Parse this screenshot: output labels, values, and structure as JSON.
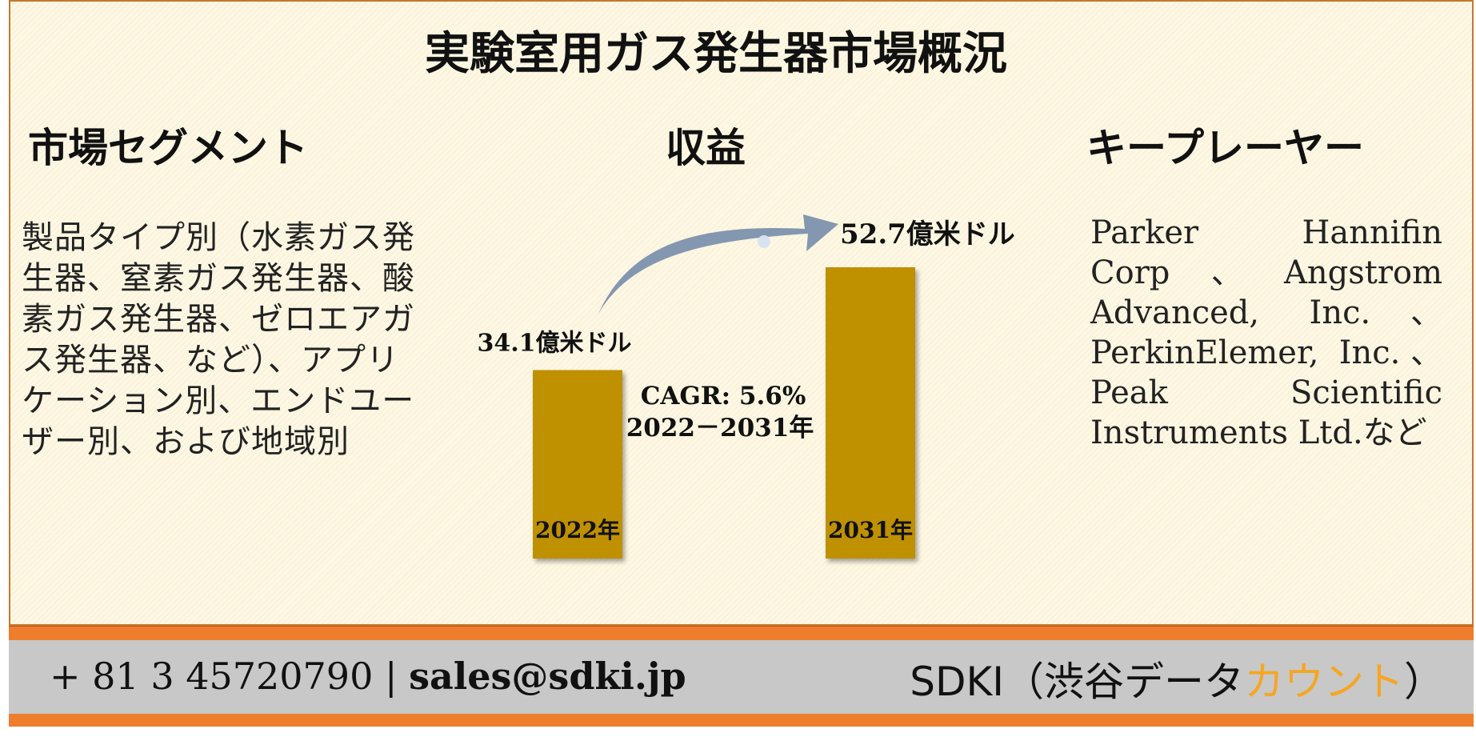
{
  "title": "実験室用ガス発生器市場概況",
  "segment": {
    "heading": "市場セグメント",
    "body": "製品タイプ別（水素ガス発生器、窒素ガス発生器、酸素ガス発生器、ゼロエアガス発生器、など）、アプリケーション別、エンドユーザー別、および地域別"
  },
  "revenue": {
    "heading": "収益"
  },
  "key_players": {
    "heading": "キープレーヤー",
    "body": "Parker Hannifin Corp、Angstrom Advanced, Inc.、PerkinElemer, Inc.、Peak Scientific Instruments Ltd.など"
  },
  "chart_data": {
    "type": "bar",
    "categories": [
      "2022年",
      "2031年"
    ],
    "values": [
      34.1,
      52.7
    ],
    "value_labels": [
      "34.1億米ドル",
      "52.7億米ドル"
    ],
    "bar_color": "#bf9000",
    "arrow_color": "#8497b0",
    "cagr_label": "CAGR: 5.6%",
    "period_label": "2022－2031年"
  },
  "footer": {
    "phone": "+ 81 3 45720790",
    "separator": "|",
    "email": "sales@sdki.jp",
    "brand_prefix": "SDKI（渋谷データ",
    "brand_accent": "カウント",
    "brand_suffix": "）",
    "accent_color": "#f5a623",
    "stripe_color": "#ef7d2e"
  }
}
